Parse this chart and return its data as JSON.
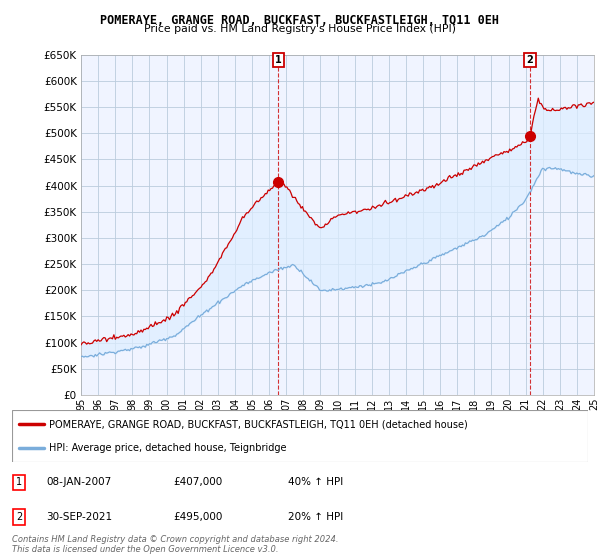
{
  "title": "POMERAYE, GRANGE ROAD, BUCKFAST, BUCKFASTLEIGH, TQ11 0EH",
  "subtitle": "Price paid vs. HM Land Registry's House Price Index (HPI)",
  "ylim": [
    0,
    650000
  ],
  "yticks": [
    0,
    50000,
    100000,
    150000,
    200000,
    250000,
    300000,
    350000,
    400000,
    450000,
    500000,
    550000,
    600000,
    650000
  ],
  "ytick_labels": [
    "£0",
    "£50K",
    "£100K",
    "£150K",
    "£200K",
    "£250K",
    "£300K",
    "£350K",
    "£400K",
    "£450K",
    "£500K",
    "£550K",
    "£600K",
    "£650K"
  ],
  "xlim_start": 1995.5,
  "xlim_end": 2025.5,
  "sale1_x": 2007.04,
  "sale1_y": 407000,
  "sale2_x": 2021.75,
  "sale2_y": 495000,
  "red_color": "#cc0000",
  "blue_color": "#7aaddb",
  "fill_color": "#ddeeff",
  "bg_color": "#ffffff",
  "plot_bg": "#f0f4ff",
  "grid_color": "#bbccdd",
  "legend_line1": "POMERAYE, GRANGE ROAD, BUCKFAST, BUCKFASTLEIGH, TQ11 0EH (detached house)",
  "legend_line2": "HPI: Average price, detached house, Teignbridge",
  "footer": "Contains HM Land Registry data © Crown copyright and database right 2024.\nThis data is licensed under the Open Government Licence v3.0."
}
